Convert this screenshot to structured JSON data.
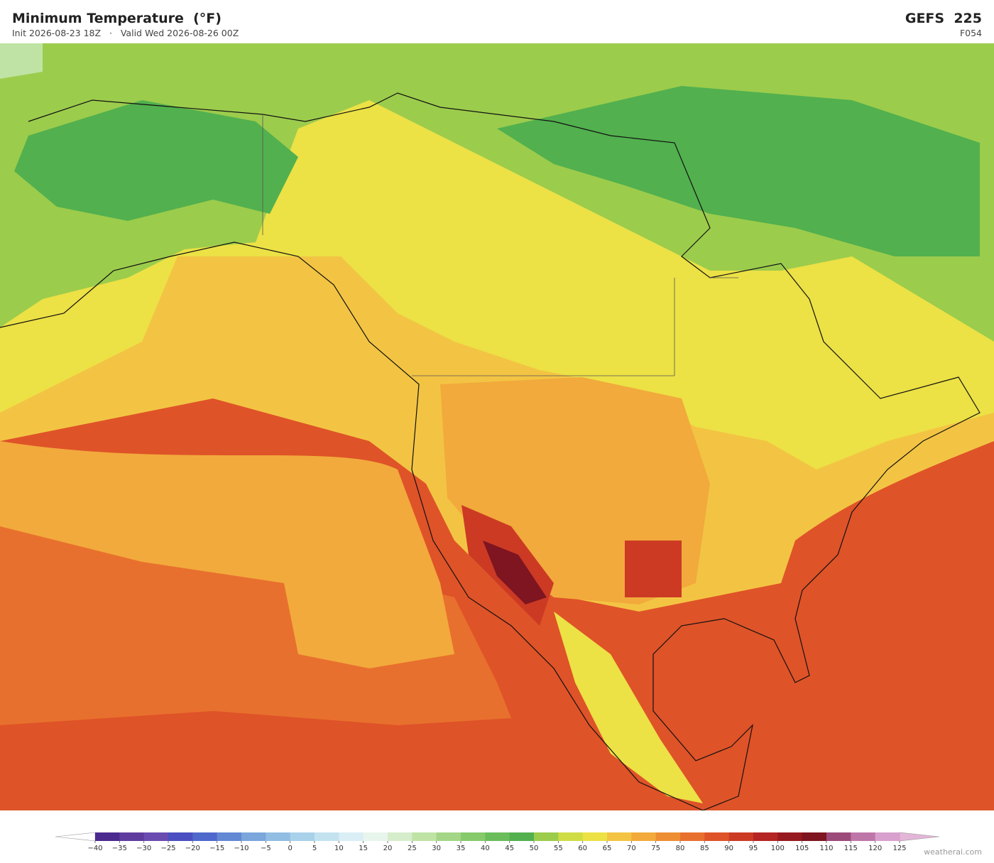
{
  "header": {
    "title": "Minimum Temperature  (°F)",
    "subtitle": "Init 2026-08-23 18Z   ·   Valid Wed 2026-08-26 00Z",
    "model": "GEFS  225",
    "forecast_hour": "F054"
  },
  "colorbar": {
    "ticks": [
      {
        "value": -40,
        "label": "−40"
      },
      {
        "value": -35,
        "label": "−35"
      },
      {
        "value": -30,
        "label": "−30"
      },
      {
        "value": -25,
        "label": "−25"
      },
      {
        "value": -20,
        "label": "−20"
      },
      {
        "value": -15,
        "label": "−15"
      },
      {
        "value": -10,
        "label": "−10"
      },
      {
        "value": -5,
        "label": "−5"
      },
      0,
      5,
      10,
      15,
      20,
      25,
      30,
      35,
      40,
      45,
      50,
      55,
      60,
      65,
      70,
      75,
      80,
      85,
      90,
      95,
      100,
      105,
      110,
      115,
      120,
      125
    ],
    "colors": [
      "#4b2a8f",
      "#5e3c9e",
      "#6a4bb0",
      "#4a4ec0",
      "#4f68cc",
      "#6388d4",
      "#7aa6dc",
      "#92bde3",
      "#a9d1ea",
      "#c3e2f0",
      "#daeef5",
      "#e8f5ec",
      "#d6edcc",
      "#bfe3a4",
      "#a3d686",
      "#86ca6c",
      "#6abd5a",
      "#52b04e",
      "#9ccc4c",
      "#cfdc44",
      "#ece145",
      "#f3c443",
      "#f2aa3c",
      "#ee8e33",
      "#e8702e",
      "#df5328",
      "#cc3a24",
      "#b52523",
      "#971a20",
      "#7e1520",
      "#9b4a7a",
      "#be76a8",
      "#d8a0cc"
    ],
    "under_color": "#ffffff",
    "over_color": "#e3b6d8"
  },
  "footer": {
    "brand": "weatherai.com"
  }
}
